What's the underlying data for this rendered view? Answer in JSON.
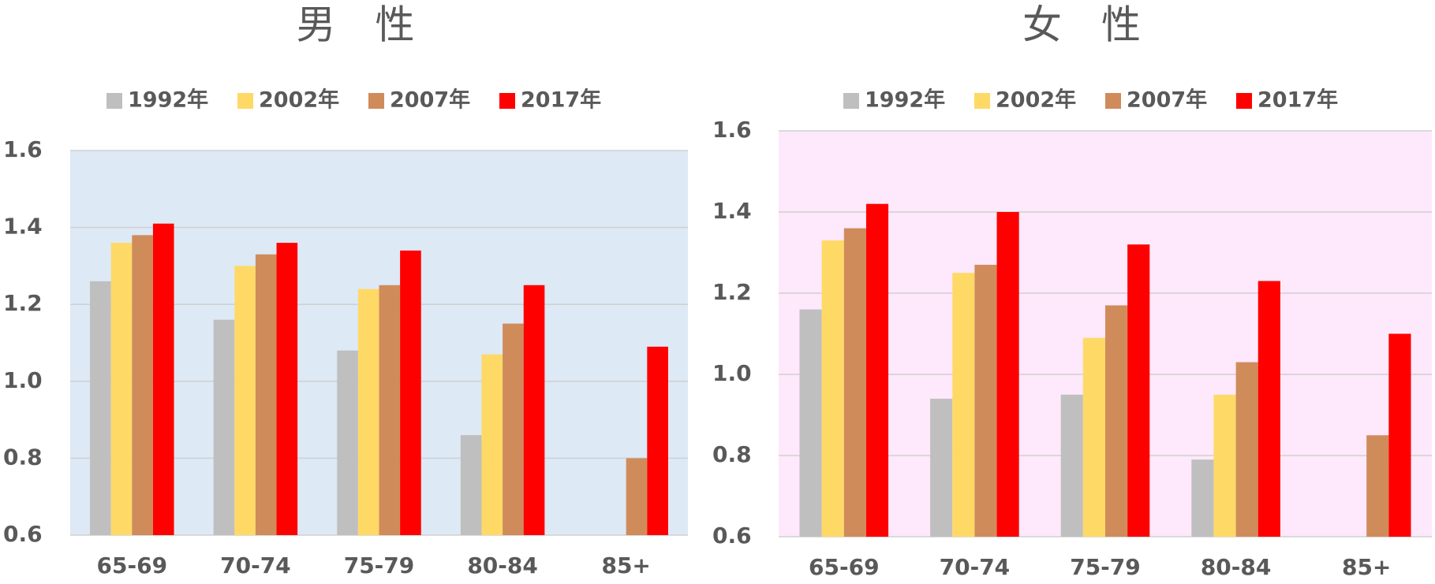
{
  "chart_data": [
    {
      "type": "bar",
      "title": "男　性",
      "background": "#dde9f5",
      "categories": [
        "65-69",
        "70-74",
        "75-79",
        "80-84",
        "85+"
      ],
      "series": [
        {
          "name": "1992年",
          "color": "#bfbfbf",
          "values": [
            1.26,
            1.16,
            1.08,
            0.86,
            null
          ]
        },
        {
          "name": "2002年",
          "color": "#ffd966",
          "values": [
            1.36,
            1.3,
            1.24,
            1.07,
            null
          ]
        },
        {
          "name": "2007年",
          "color": "#d08b5b",
          "values": [
            1.38,
            1.33,
            1.25,
            1.15,
            0.8
          ]
        },
        {
          "name": "2017年",
          "color": "#ff0000",
          "values": [
            1.41,
            1.36,
            1.34,
            1.25,
            1.09
          ]
        }
      ],
      "ylim": [
        0.6,
        1.6
      ],
      "yticks": [
        0.6,
        0.8,
        {
          "value": 1,
          "label": "1.0"
        },
        1.2,
        1.4,
        1.6
      ],
      "grid": true,
      "legend": "top"
    },
    {
      "type": "bar",
      "title": "女　性",
      "background": "#fde9fb",
      "categories": [
        "65-69",
        "70-74",
        "75-79",
        "80-84",
        "85+"
      ],
      "series": [
        {
          "name": "1992年",
          "color": "#bfbfbf",
          "values": [
            1.16,
            0.94,
            0.95,
            0.79,
            null
          ]
        },
        {
          "name": "2002年",
          "color": "#ffd966",
          "values": [
            1.33,
            1.25,
            1.09,
            0.95,
            null
          ]
        },
        {
          "name": "2007年",
          "color": "#d08b5b",
          "values": [
            1.36,
            1.27,
            1.17,
            1.03,
            0.85
          ]
        },
        {
          "name": "2017年",
          "color": "#ff0000",
          "values": [
            1.42,
            1.4,
            1.32,
            1.23,
            1.1
          ]
        }
      ],
      "ylim": [
        0.6,
        1.6
      ],
      "yticks": [
        0.6,
        0.8,
        {
          "value": 1,
          "label": "1.0"
        },
        1.2,
        1.4,
        1.6
      ],
      "grid": true,
      "legend": "top"
    }
  ]
}
